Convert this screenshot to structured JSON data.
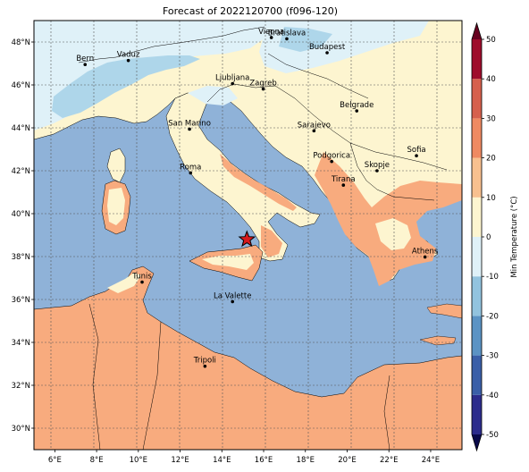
{
  "title": "Forecast of 2022120700 (f096-120)",
  "map": {
    "lon_range": [
      5,
      25.5
    ],
    "lat_range": [
      29,
      49
    ],
    "x_ticks": [
      {
        "value": 6,
        "label": "6°E"
      },
      {
        "value": 8,
        "label": "8°E"
      },
      {
        "value": 10,
        "label": "10°E"
      },
      {
        "value": 12,
        "label": "12°E"
      },
      {
        "value": 14,
        "label": "14°E"
      },
      {
        "value": 16,
        "label": "16°E"
      },
      {
        "value": 18,
        "label": "18°E"
      },
      {
        "value": 20,
        "label": "20°E"
      },
      {
        "value": 22,
        "label": "22°E"
      },
      {
        "value": 24,
        "label": "24°E"
      }
    ],
    "y_ticks": [
      {
        "value": 30,
        "label": "30°N"
      },
      {
        "value": 32,
        "label": "32°N"
      },
      {
        "value": 34,
        "label": "34°N"
      },
      {
        "value": 36,
        "label": "36°N"
      },
      {
        "value": 38,
        "label": "38°N"
      },
      {
        "value": 40,
        "label": "40°N"
      },
      {
        "value": 42,
        "label": "42°N"
      },
      {
        "value": 44,
        "label": "44°N"
      },
      {
        "value": 46,
        "label": "46°N"
      },
      {
        "value": 48,
        "label": "48°N"
      }
    ],
    "cities": [
      {
        "name": "Bern",
        "lon": 7.45,
        "lat": 46.95
      },
      {
        "name": "Vaduz",
        "lon": 9.52,
        "lat": 47.14
      },
      {
        "name": "Vienna",
        "lon": 16.37,
        "lat": 48.21
      },
      {
        "name": "Bratislava",
        "lon": 17.11,
        "lat": 48.15
      },
      {
        "name": "Budapest",
        "lon": 19.04,
        "lat": 47.5
      },
      {
        "name": "Ljubljana",
        "lon": 14.51,
        "lat": 46.06
      },
      {
        "name": "Zagreb",
        "lon": 15.98,
        "lat": 45.81
      },
      {
        "name": "Belgrade",
        "lon": 20.46,
        "lat": 44.79
      },
      {
        "name": "San Marino",
        "lon": 12.45,
        "lat": 43.94
      },
      {
        "name": "Sarajevo",
        "lon": 18.41,
        "lat": 43.86
      },
      {
        "name": "Podgorica",
        "lon": 19.26,
        "lat": 42.43
      },
      {
        "name": "Skopje",
        "lon": 21.43,
        "lat": 42.0
      },
      {
        "name": "Sofia",
        "lon": 23.32,
        "lat": 42.7
      },
      {
        "name": "Roma",
        "lon": 12.5,
        "lat": 41.9
      },
      {
        "name": "Tirana",
        "lon": 19.82,
        "lat": 41.33
      },
      {
        "name": "Athens",
        "lon": 23.73,
        "lat": 37.98
      },
      {
        "name": "Tunis",
        "lon": 10.18,
        "lat": 36.81
      },
      {
        "name": "La Valette",
        "lon": 14.51,
        "lat": 35.9
      },
      {
        "name": "Tripoli",
        "lon": 13.19,
        "lat": 32.89
      }
    ],
    "marker": {
      "symbol": "star",
      "lon": 15.2,
      "lat": 38.8,
      "color": "#d7191c"
    }
  },
  "colorbar": {
    "label": "Min Temperature (°C)",
    "ticks": [
      -50,
      -40,
      -30,
      -20,
      -10,
      0,
      10,
      20,
      30,
      40,
      50
    ],
    "bins": [
      {
        "from": -50,
        "to": -40,
        "color": "#2c2c8c"
      },
      {
        "from": -40,
        "to": -30,
        "color": "#3a5fa8"
      },
      {
        "from": -30,
        "to": -20,
        "color": "#5b93c4"
      },
      {
        "from": -20,
        "to": -10,
        "color": "#92c3de"
      },
      {
        "from": -10,
        "to": 0,
        "color": "#dff1f8"
      },
      {
        "from": 0,
        "to": 10,
        "color": "#fdf5d0"
      },
      {
        "from": 10,
        "to": 20,
        "color": "#f8c08f"
      },
      {
        "from": 20,
        "to": 30,
        "color": "#ef8a62"
      },
      {
        "from": 30,
        "to": 40,
        "color": "#d6604d"
      },
      {
        "from": 40,
        "to": 50,
        "color": "#9e0c2b"
      }
    ],
    "under_color": "#0a0a4a",
    "over_color": "#67001f"
  },
  "colors": {
    "sea": "#8fb2d8",
    "warm_land": "#f8ab7e",
    "mild_land": "#fdf5d0",
    "cold": "#dff1f8",
    "colder": "#aed6ea",
    "coast": "#000000"
  }
}
